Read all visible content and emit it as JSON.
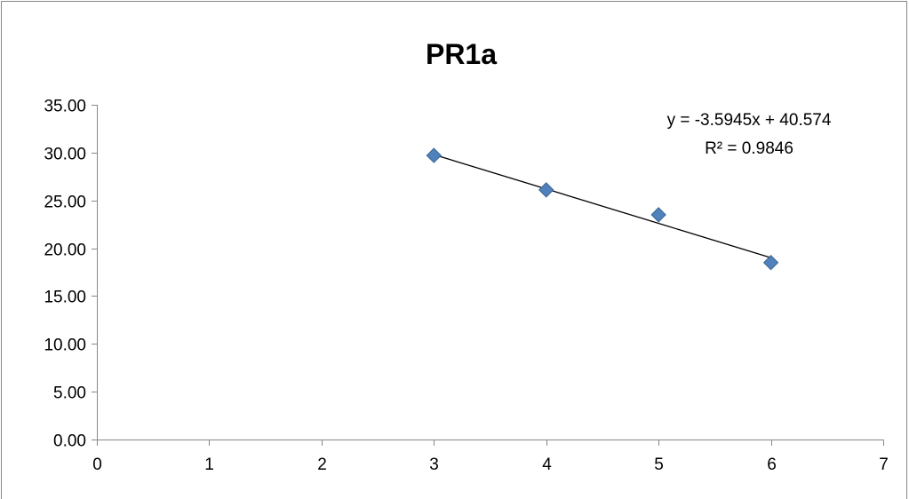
{
  "chart_data": {
    "type": "scatter",
    "title": "PR1a",
    "xlabel": "",
    "ylabel": "",
    "xlim": [
      0,
      7
    ],
    "ylim": [
      0,
      35
    ],
    "x_ticks": [
      "0",
      "1",
      "2",
      "3",
      "4",
      "5",
      "6",
      "7"
    ],
    "y_ticks": [
      "0.00",
      "5.00",
      "10.00",
      "15.00",
      "20.00",
      "25.00",
      "30.00",
      "35.00"
    ],
    "grid": false,
    "legend": "none",
    "series": [
      {
        "x": [
          3,
          4,
          5,
          6
        ],
        "y": [
          29.7,
          26.1,
          23.5,
          18.5
        ],
        "marker": "diamond",
        "color": "#4F81BD"
      }
    ],
    "trendline": {
      "kind": "linear",
      "slope": -3.5945,
      "intercept": 40.574,
      "x_range": [
        3,
        6
      ],
      "color": "#000000",
      "equation": "y = -3.5945x + 40.574",
      "r_squared": "R² = 0.9846"
    }
  }
}
